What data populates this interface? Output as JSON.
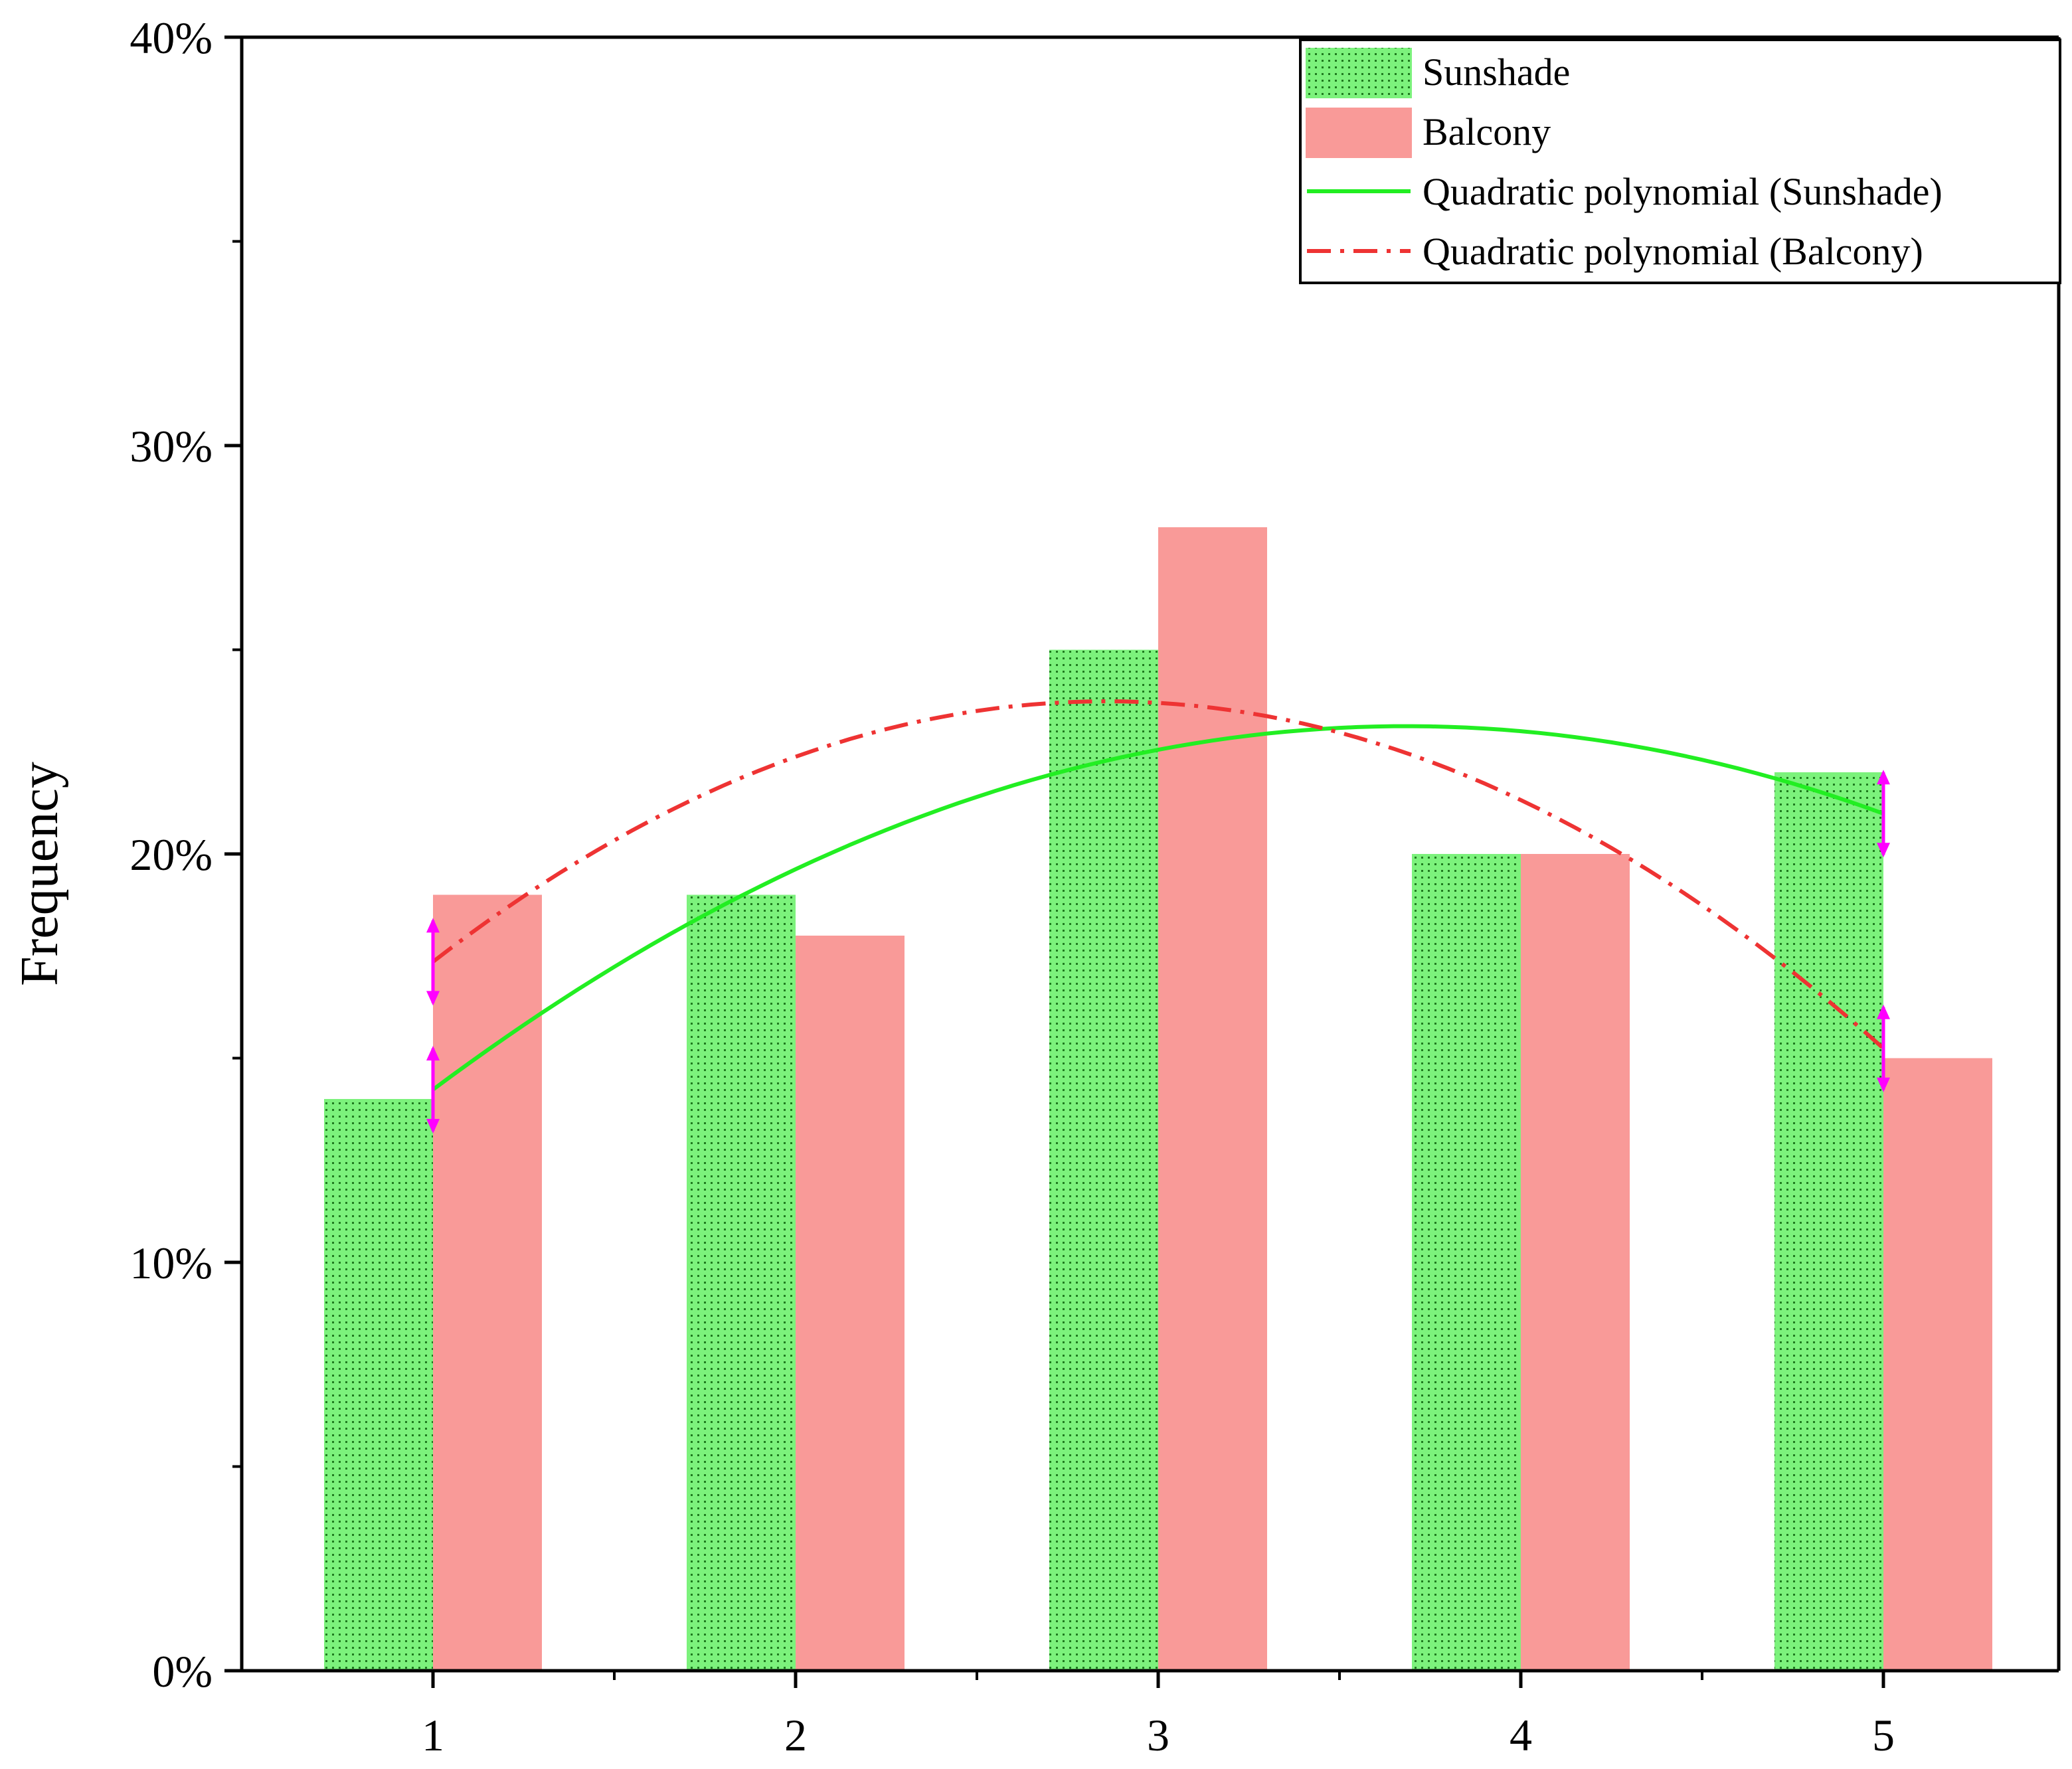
{
  "chart_data": {
    "type": "bar",
    "title": "",
    "xlabel": "",
    "ylabel": "Frequency",
    "categories": [
      "1",
      "2",
      "3",
      "4",
      "5"
    ],
    "x": [
      1,
      2,
      3,
      4,
      5
    ],
    "ylim": [
      0,
      40
    ],
    "yticks": [
      0,
      10,
      20,
      30,
      40
    ],
    "ytick_labels": [
      "0%",
      "10%",
      "20%",
      "30%",
      "40%"
    ],
    "y_minor_ticks": [
      5,
      15,
      25,
      35
    ],
    "series": [
      {
        "name": "Sunshade",
        "kind": "bar",
        "values": [
          14,
          19,
          25,
          20,
          22
        ],
        "color": "#7CF27C",
        "pattern": "dotted-grid"
      },
      {
        "name": "Balcony",
        "kind": "bar",
        "values": [
          19,
          18,
          28,
          20,
          15
        ],
        "color": "#F99A98"
      }
    ],
    "fits": [
      {
        "name": "Quadratic polynomial (Sunshade)",
        "kind": "line",
        "style": "solid",
        "color": "#22EE22",
        "x": [
          1,
          2,
          3,
          4,
          5
        ],
        "values": [
          14.2,
          19.7,
          22.5,
          23.0,
          21.0
        ]
      },
      {
        "name": "Quadratic polynomial (Balcony)",
        "kind": "line",
        "style": "dash-dot",
        "color": "#EE3333",
        "x": [
          1,
          2,
          3,
          4,
          5
        ],
        "values": [
          17.4,
          22.3,
          23.7,
          21.4,
          15.2
        ]
      }
    ],
    "legend": {
      "position": "top-right",
      "entries": [
        "Sunshade",
        "Balcony",
        "Quadratic polynomial (Sunshade)",
        "Quadratic polynomial (Balcony)"
      ]
    },
    "markers_color": "#FF00FF"
  }
}
